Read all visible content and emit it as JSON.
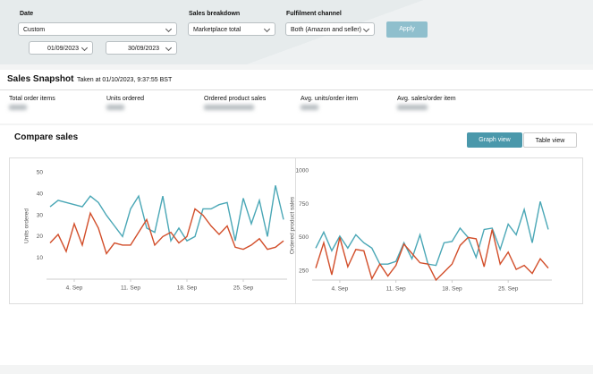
{
  "filters": {
    "date": {
      "label": "Date",
      "value": "Custom",
      "start": "01/09/2023",
      "end": "30/09/2023"
    },
    "breakdown": {
      "label": "Sales breakdown",
      "value": "Marketplace total"
    },
    "fulfilment": {
      "label": "Fulfilment channel",
      "value": "Both (Amazon and seller)"
    },
    "apply": "Apply"
  },
  "snapshot": {
    "title": "Sales Snapshot",
    "taken": "Taken at 01/10/2023, 9:37:55 BST",
    "metrics": [
      "Total order items",
      "Units ordered",
      "Ordered product sales",
      "Avg. units/order item",
      "Avg. sales/order item"
    ]
  },
  "compare": {
    "title": "Compare sales",
    "views": [
      "Graph view",
      "Table view"
    ]
  },
  "chart_data": [
    {
      "type": "line",
      "ylabel": "Units ordered",
      "x": [
        1,
        2,
        3,
        4,
        5,
        6,
        7,
        8,
        9,
        10,
        11,
        12,
        13,
        14,
        15,
        16,
        17,
        18,
        19,
        20,
        21,
        22,
        23,
        24,
        25,
        26,
        27,
        28,
        29,
        30
      ],
      "xlim": [
        1,
        30
      ],
      "xticks": [
        {
          "value": 4,
          "label": "4. Sep"
        },
        {
          "value": 11,
          "label": "11. Sep"
        },
        {
          "value": 18,
          "label": "18. Sep"
        },
        {
          "value": 25,
          "label": "25. Sep"
        }
      ],
      "ylim": [
        0,
        50
      ],
      "yticks": [
        10,
        20,
        30,
        40,
        50
      ],
      "series": [
        {
          "color": "#4aa7b6",
          "values": [
            34,
            37,
            36,
            35,
            34,
            39,
            36,
            30,
            25,
            20,
            33,
            39,
            24,
            22,
            39,
            18,
            24,
            18,
            20,
            33,
            33,
            35,
            36,
            18,
            38,
            26,
            37,
            20,
            44,
            28
          ]
        },
        {
          "color": "#d24e2a",
          "values": [
            17,
            21,
            13,
            26,
            16,
            31,
            24,
            12,
            17,
            16,
            16,
            22,
            28,
            16,
            20,
            22,
            17,
            20,
            33,
            30,
            25,
            21,
            25,
            15,
            14,
            16,
            19,
            14,
            15,
            18
          ]
        }
      ]
    },
    {
      "type": "line",
      "ylabel": "Ordered product sales",
      "x": [
        1,
        2,
        3,
        4,
        5,
        6,
        7,
        8,
        9,
        10,
        11,
        12,
        13,
        14,
        15,
        16,
        17,
        18,
        19,
        20,
        21,
        22,
        23,
        24,
        25,
        26,
        27,
        28,
        29,
        30
      ],
      "xlim": [
        1,
        30
      ],
      "xticks": [
        {
          "value": 4,
          "label": "4. Sep"
        },
        {
          "value": 11,
          "label": "11. Sep"
        },
        {
          "value": 18,
          "label": "18. Sep"
        },
        {
          "value": 25,
          "label": "25. Sep"
        }
      ],
      "ylim": [
        180,
        1000
      ],
      "yticks": [
        250,
        500,
        750,
        1000
      ],
      "series": [
        {
          "color": "#4aa7b6",
          "values": [
            420,
            540,
            400,
            510,
            420,
            520,
            460,
            420,
            300,
            300,
            320,
            460,
            340,
            520,
            300,
            290,
            460,
            470,
            570,
            500,
            350,
            560,
            570,
            410,
            600,
            520,
            710,
            460,
            770,
            560
          ]
        },
        {
          "color": "#d24e2a",
          "values": [
            270,
            460,
            220,
            500,
            280,
            410,
            400,
            190,
            300,
            210,
            290,
            450,
            380,
            310,
            300,
            180,
            240,
            300,
            440,
            500,
            490,
            280,
            560,
            300,
            390,
            260,
            290,
            230,
            340,
            270
          ]
        }
      ]
    }
  ]
}
